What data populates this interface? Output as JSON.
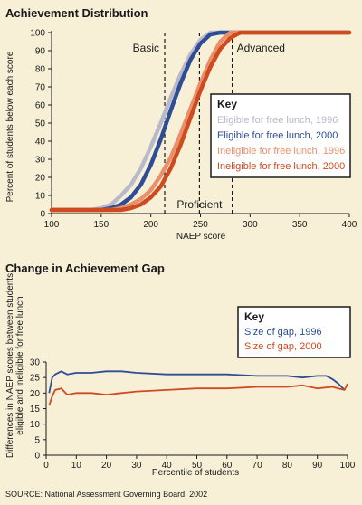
{
  "chart_data": [
    {
      "type": "line",
      "title": "Achievement Distribution",
      "xlabel": "NAEP score",
      "ylabel": "Percent of students below each score",
      "xlim": [
        100,
        400
      ],
      "ylim": [
        0,
        100
      ],
      "x_ticks": [
        "100",
        "150",
        "200",
        "250",
        "300",
        "350",
        "400"
      ],
      "y_ticks": [
        "0",
        "10",
        "20",
        "30",
        "40",
        "50",
        "60",
        "70",
        "80",
        "90",
        "100"
      ],
      "grid": false,
      "legend_position": "right",
      "legend_title": "Key",
      "reference_lines": [
        {
          "label": "Basic",
          "x": 214
        },
        {
          "label": "Proficient",
          "x": 249
        },
        {
          "label": "Advanced",
          "x": 282
        }
      ],
      "series": [
        {
          "name": "Eligible for free lunch, 1996",
          "color": "#b9b9c9",
          "x": [
            100,
            140,
            150,
            160,
            170,
            180,
            190,
            200,
            210,
            220,
            230,
            240,
            250,
            260,
            270,
            280,
            400
          ],
          "y": [
            2,
            2,
            3,
            5,
            10,
            16,
            25,
            37,
            50,
            64,
            77,
            88,
            96,
            100,
            100,
            100,
            100
          ]
        },
        {
          "name": "Eligible for free lunch, 2000",
          "color": "#2e4d96",
          "x": [
            100,
            150,
            160,
            170,
            180,
            190,
            200,
            210,
            220,
            230,
            240,
            250,
            260,
            270,
            280,
            400
          ],
          "y": [
            2,
            2,
            3,
            5,
            9,
            16,
            27,
            41,
            57,
            72,
            85,
            94,
            99,
            100,
            100,
            100
          ]
        },
        {
          "name": "Ineligible for free lunch, 1996",
          "color": "#e8906a",
          "x": [
            100,
            160,
            170,
            180,
            190,
            200,
            210,
            220,
            230,
            240,
            250,
            260,
            270,
            280,
            400
          ],
          "y": [
            2,
            2,
            3,
            5,
            8,
            13,
            21,
            31,
            44,
            58,
            72,
            85,
            95,
            100,
            100
          ]
        },
        {
          "name": "Ineligible for free lunch, 2000",
          "color": "#cf4b1f",
          "x": [
            100,
            170,
            180,
            190,
            200,
            210,
            220,
            230,
            240,
            250,
            260,
            270,
            280,
            290,
            400
          ],
          "y": [
            2,
            2,
            3,
            5,
            9,
            15,
            25,
            38,
            53,
            68,
            81,
            91,
            97,
            100,
            100
          ]
        }
      ]
    },
    {
      "type": "line",
      "title": "Change in Achievement Gap",
      "xlabel": "Percentile of students",
      "ylabel": "Differences in NAEP scores between students eligible and ineligible for free lunch",
      "xlim": [
        0,
        100
      ],
      "ylim": [
        0,
        30
      ],
      "x_ticks": [
        "0",
        "10",
        "20",
        "30",
        "40",
        "50",
        "60",
        "70",
        "80",
        "90",
        "100"
      ],
      "y_ticks": [
        "0",
        "5",
        "10",
        "15",
        "20",
        "25",
        "30"
      ],
      "grid": false,
      "legend_position": "top-right",
      "legend_title": "Key",
      "series": [
        {
          "name": "Size of gap, 1996",
          "color": "#2e4d96",
          "x": [
            1,
            2,
            3,
            5,
            7,
            10,
            15,
            20,
            25,
            30,
            40,
            50,
            60,
            70,
            80,
            85,
            90,
            93,
            95,
            97,
            99
          ],
          "y": [
            20,
            25,
            26,
            27,
            26,
            26.5,
            26.5,
            27,
            27,
            26.5,
            26,
            26,
            26,
            25.5,
            25.5,
            25,
            25.5,
            25.5,
            24.5,
            23,
            21
          ]
        },
        {
          "name": "Size of gap, 2000",
          "color": "#cf4b1f",
          "x": [
            1,
            2,
            3,
            5,
            7,
            10,
            15,
            20,
            25,
            30,
            40,
            50,
            60,
            70,
            80,
            85,
            90,
            95,
            97,
            99,
            100
          ],
          "y": [
            16,
            19,
            21,
            21.5,
            19.5,
            20,
            20,
            19.5,
            20,
            20.5,
            21,
            21.5,
            21.5,
            22,
            22,
            22.5,
            21.5,
            22,
            21.5,
            21,
            23
          ]
        }
      ]
    }
  ],
  "source": "SOURCE: National Assessment Governing Board, 2002"
}
